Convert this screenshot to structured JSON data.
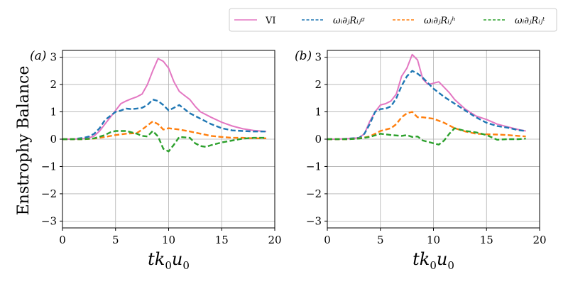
{
  "chart_data": {
    "type": "line",
    "ylabel": "Enstrophy Balance",
    "xlabel_parts": [
      "tk",
      "0",
      "u",
      "0"
    ],
    "xlim": [
      0,
      20
    ],
    "ylim": [
      -3.25,
      3.25
    ],
    "xticks": [
      0,
      5,
      10,
      15,
      20
    ],
    "yticks": [
      -3,
      -2,
      -1,
      0,
      1,
      2,
      3
    ],
    "grid": true,
    "legend": {
      "placement": "top-right",
      "entries": [
        {
          "label": "VI",
          "color": "#e377c2",
          "style": "solid"
        },
        {
          "label": "ωᵢ∂ⱼRᵢⱼᵍ",
          "color": "#1f77b4",
          "style": "dashed"
        },
        {
          "label": "ωᵢ∂ⱼRᵢⱼʰ",
          "color": "#ff7f0e",
          "style": "dashed"
        },
        {
          "label": "ωᵢ∂ⱼRᵢⱼᵗ",
          "color": "#2ca02c",
          "style": "dashed"
        }
      ]
    },
    "panels": [
      {
        "label": "(a)",
        "series": [
          {
            "name": "VI",
            "color": "#e377c2",
            "style": "solid",
            "x": [
              0,
              1,
              2,
              2.5,
              3,
              3.5,
              4,
              4.5,
              5,
              5.5,
              6,
              6.5,
              7,
              7.5,
              8,
              8.5,
              9,
              9.5,
              10,
              10.5,
              11,
              11.5,
              12,
              12.5,
              13,
              14,
              15,
              16,
              17,
              18,
              19.2
            ],
            "y": [
              0,
              0,
              0.02,
              0.05,
              0.12,
              0.3,
              0.55,
              0.8,
              1.05,
              1.3,
              1.4,
              1.48,
              1.55,
              1.65,
              2.0,
              2.5,
              2.95,
              2.85,
              2.6,
              2.1,
              1.75,
              1.6,
              1.45,
              1.2,
              1.0,
              0.8,
              0.62,
              0.48,
              0.38,
              0.32,
              0.28
            ]
          },
          {
            "name": "ωᵢ∂ⱼRᵢⱼᵍ",
            "color": "#1f77b4",
            "style": "dashed",
            "x": [
              0,
              1,
              2,
              2.5,
              3,
              3.5,
              4,
              4.5,
              5,
              5.5,
              6,
              6.5,
              7,
              7.5,
              8,
              8.5,
              9,
              9.5,
              10,
              10.5,
              11,
              11.5,
              12,
              12.5,
              13,
              14,
              15,
              16,
              17,
              18,
              19.2
            ],
            "y": [
              0,
              0,
              0.05,
              0.1,
              0.2,
              0.4,
              0.7,
              0.85,
              1.0,
              1.05,
              1.12,
              1.1,
              1.12,
              1.15,
              1.25,
              1.45,
              1.4,
              1.25,
              1.05,
              1.15,
              1.25,
              1.1,
              0.95,
              0.85,
              0.75,
              0.55,
              0.4,
              0.32,
              0.3,
              0.28,
              0.28
            ]
          },
          {
            "name": "ωᵢ∂ⱼRᵢⱼʰ",
            "color": "#ff7f0e",
            "style": "dashed",
            "x": [
              0,
              1,
              2,
              3,
              4,
              5,
              6,
              7,
              7.5,
              8,
              8.5,
              9,
              9.5,
              10,
              11,
              12,
              13,
              14,
              15,
              16,
              17,
              18,
              19.2
            ],
            "y": [
              0,
              0,
              0,
              0.02,
              0.08,
              0.15,
              0.2,
              0.22,
              0.35,
              0.5,
              0.65,
              0.55,
              0.35,
              0.4,
              0.35,
              0.28,
              0.2,
              0.12,
              0.08,
              0.05,
              0.05,
              0.03,
              0.03
            ]
          },
          {
            "name": "ωᵢ∂ⱼRᵢⱼᵗ",
            "color": "#2ca02c",
            "style": "dashed",
            "x": [
              0,
              1,
              2,
              3,
              4,
              4.5,
              5,
              6,
              7,
              7.5,
              8,
              8.5,
              9,
              9.5,
              10,
              10.5,
              11,
              12,
              12.5,
              13,
              13.5,
              14,
              15,
              16,
              17,
              18,
              19.2
            ],
            "y": [
              0,
              0,
              0,
              0.03,
              0.15,
              0.25,
              0.3,
              0.3,
              0.2,
              0.12,
              0.1,
              0.3,
              0.1,
              -0.35,
              -0.45,
              -0.2,
              0.08,
              0.05,
              -0.15,
              -0.25,
              -0.28,
              -0.22,
              -0.12,
              -0.05,
              0.02,
              0.05,
              0.05
            ]
          }
        ]
      },
      {
        "label": "(b)",
        "series": [
          {
            "name": "VI",
            "color": "#e377c2",
            "style": "solid",
            "x": [
              0,
              1,
              2,
              3,
              3.5,
              4,
              4.5,
              5,
              5.5,
              6,
              6.5,
              7,
              7.5,
              8,
              8.5,
              9,
              9.5,
              10,
              10.5,
              11,
              11.5,
              12,
              13,
              14,
              15,
              16,
              17,
              18,
              18.7
            ],
            "y": [
              0,
              0,
              0.02,
              0.05,
              0.2,
              0.65,
              1.0,
              1.25,
              1.3,
              1.4,
              1.65,
              2.3,
              2.6,
              3.1,
              2.9,
              2.2,
              2.0,
              2.05,
              2.1,
              1.9,
              1.7,
              1.45,
              1.1,
              0.85,
              0.72,
              0.55,
              0.45,
              0.35,
              0.3
            ]
          },
          {
            "name": "ωᵢ∂ⱼRᵢⱼᵍ",
            "color": "#1f77b4",
            "style": "dashed",
            "x": [
              0,
              1,
              2,
              3,
              3.5,
              4,
              4.5,
              5,
              5.5,
              6,
              6.5,
              7,
              7.5,
              8,
              8.5,
              9,
              9.5,
              10,
              10.5,
              11,
              12,
              13,
              14,
              15,
              16,
              17,
              18,
              18.7
            ],
            "y": [
              0,
              0,
              0.02,
              0.05,
              0.2,
              0.55,
              1.0,
              1.1,
              1.12,
              1.2,
              1.5,
              1.95,
              2.3,
              2.5,
              2.4,
              2.25,
              2.05,
              1.85,
              1.7,
              1.55,
              1.3,
              1.05,
              0.8,
              0.6,
              0.48,
              0.42,
              0.33,
              0.3
            ]
          },
          {
            "name": "ωᵢ∂ⱼRᵢⱼʰ",
            "color": "#ff7f0e",
            "style": "dashed",
            "x": [
              0,
              1,
              2,
              3,
              4,
              5,
              6,
              6.5,
              7,
              7.5,
              8,
              8.5,
              9,
              10,
              11,
              12,
              13,
              14,
              15,
              16,
              17,
              18,
              18.7
            ],
            "y": [
              0,
              0,
              0,
              0.03,
              0.1,
              0.3,
              0.4,
              0.55,
              0.8,
              0.95,
              1.0,
              0.8,
              0.8,
              0.75,
              0.6,
              0.4,
              0.28,
              0.2,
              0.18,
              0.17,
              0.15,
              0.12,
              0.1
            ]
          },
          {
            "name": "ωᵢ∂ⱼRᵢⱼᵗ",
            "color": "#2ca02c",
            "style": "dashed",
            "x": [
              0,
              1,
              2,
              3,
              4,
              5,
              6,
              7,
              7.5,
              8,
              8.5,
              9,
              10,
              10.5,
              11,
              11.5,
              12,
              12.5,
              13,
              14,
              15,
              16,
              17,
              18,
              18.7
            ],
            "y": [
              0,
              0,
              0,
              0.02,
              0.08,
              0.2,
              0.15,
              0.12,
              0.15,
              0.08,
              0.1,
              -0.05,
              -0.15,
              -0.2,
              -0.05,
              0.2,
              0.4,
              0.35,
              0.3,
              0.25,
              0.15,
              -0.02,
              0,
              0,
              0.02
            ]
          }
        ]
      }
    ]
  }
}
